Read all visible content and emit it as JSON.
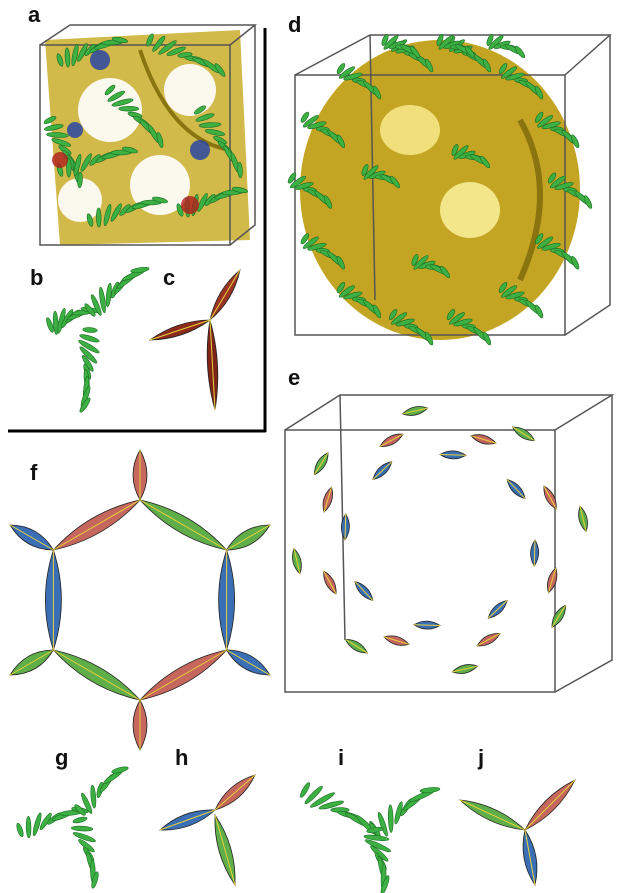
{
  "panels": [
    {
      "label": "a"
    },
    {
      "label": "b"
    },
    {
      "label": "c"
    },
    {
      "label": "d"
    },
    {
      "label": "e"
    },
    {
      "label": "f"
    },
    {
      "label": "g"
    },
    {
      "label": "h"
    },
    {
      "label": "i"
    },
    {
      "label": "j"
    }
  ]
}
